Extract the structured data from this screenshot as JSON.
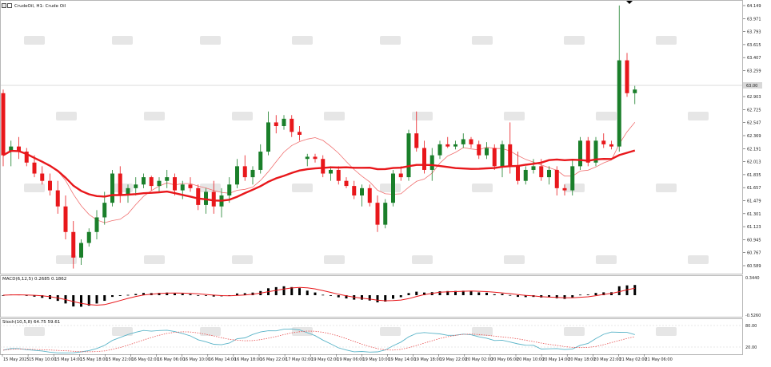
{
  "chart_title": "CrudeOil, H1:  Crude Oil",
  "main_axis": {
    "ticks": [
      "64.149",
      "63.971",
      "63.793",
      "63.615",
      "63.407",
      "63.259",
      "63.081",
      "62.903",
      "62.725",
      "62.547",
      "62.369",
      "62.191",
      "62.013",
      "61.835",
      "61.657",
      "61.479",
      "61.301",
      "61.123",
      "60.945",
      "60.767",
      "60.589"
    ]
  },
  "current_price_label": "63.00",
  "macd": {
    "label": "MACD(6,12,5) 0.2685 0.1862",
    "ticks": [
      "0.3440",
      "-0.5260"
    ]
  },
  "stoch": {
    "label": "Stoch(10,5,8) 64.75 59.61",
    "ticks": [
      "80.00",
      "20.00"
    ]
  },
  "time_labels": [
    "15 May 2025",
    "15 May 10:00",
    "15 May 14:00",
    "15 May 18:00",
    "15 May 22:00",
    "16 May 02:00",
    "16 May 06:00",
    "16 May 10:00",
    "16 May 14:00",
    "16 May 18:00",
    "16 May 22:00",
    "17 May 02:00",
    "19 May 02:00",
    "19 May 06:00",
    "19 May 10:00",
    "19 May 14:00",
    "19 May 18:00",
    "19 May 22:00",
    "20 May 02:00",
    "20 May 06:00",
    "20 May 10:00",
    "20 May 14:00",
    "20 May 18:00",
    "20 May 22:00",
    "21 May 02:00",
    "21 May 06:00"
  ],
  "colors": {
    "bull": "#1a7f2a",
    "bear": "#e8171b",
    "ma_thick": "#e8171b",
    "ma_thin": "#f07070",
    "macd_hist": "#000000",
    "macd_signal": "#e8171b",
    "stoch_main": "#5ab4c8",
    "stoch_signal": "#e85050"
  },
  "chart_data": {
    "type": "candlestick",
    "y_range": [
      60.5,
      64.2
    ],
    "candles": [
      [
        62.95,
        63.0,
        61.95,
        62.1
      ],
      [
        62.15,
        62.3,
        61.95,
        62.22
      ],
      [
        62.22,
        62.35,
        62.05,
        62.15
      ],
      [
        62.15,
        62.2,
        61.95,
        62.0
      ],
      [
        62.0,
        62.1,
        61.8,
        61.85
      ],
      [
        61.85,
        61.95,
        61.7,
        61.75
      ],
      [
        61.75,
        61.85,
        61.55,
        61.62
      ],
      [
        61.62,
        61.75,
        61.3,
        61.4
      ],
      [
        61.4,
        61.55,
        60.95,
        61.05
      ],
      [
        61.05,
        61.2,
        60.55,
        60.7
      ],
      [
        60.7,
        60.95,
        60.6,
        60.9
      ],
      [
        60.9,
        61.1,
        60.85,
        61.05
      ],
      [
        61.05,
        61.35,
        60.95,
        61.25
      ],
      [
        61.25,
        61.6,
        61.15,
        61.45
      ],
      [
        61.45,
        61.9,
        61.4,
        61.85
      ],
      [
        61.85,
        61.95,
        61.45,
        61.55
      ],
      [
        61.55,
        61.7,
        61.45,
        61.65
      ],
      [
        61.65,
        61.8,
        61.55,
        61.7
      ],
      [
        61.7,
        61.85,
        61.65,
        61.8
      ],
      [
        61.8,
        61.82,
        61.62,
        61.68
      ],
      [
        61.68,
        61.8,
        61.6,
        61.75
      ],
      [
        61.75,
        61.9,
        61.65,
        61.8
      ],
      [
        61.8,
        61.85,
        61.55,
        61.62
      ],
      [
        61.62,
        61.75,
        61.5,
        61.7
      ],
      [
        61.7,
        61.8,
        61.6,
        61.65
      ],
      [
        61.65,
        61.7,
        61.35,
        61.42
      ],
      [
        61.42,
        61.65,
        61.3,
        61.6
      ],
      [
        61.6,
        61.75,
        61.3,
        61.4
      ],
      [
        61.4,
        61.65,
        61.25,
        61.55
      ],
      [
        61.55,
        61.8,
        61.45,
        61.7
      ],
      [
        61.7,
        62.05,
        61.65,
        61.95
      ],
      [
        61.95,
        62.1,
        61.75,
        61.8
      ],
      [
        61.8,
        61.95,
        61.7,
        61.9
      ],
      [
        61.9,
        62.25,
        61.85,
        62.15
      ],
      [
        62.15,
        62.7,
        62.1,
        62.55
      ],
      [
        62.55,
        62.65,
        62.4,
        62.5
      ],
      [
        62.5,
        62.65,
        62.45,
        62.6
      ],
      [
        62.6,
        62.65,
        62.35,
        62.42
      ],
      [
        62.42,
        62.5,
        62.3,
        62.38
      ],
      [
        62.05,
        62.12,
        61.95,
        62.08
      ],
      [
        62.08,
        62.12,
        62.0,
        62.05
      ],
      [
        62.05,
        62.1,
        61.8,
        61.85
      ],
      [
        61.85,
        61.95,
        61.75,
        61.9
      ],
      [
        61.9,
        61.95,
        61.7,
        61.75
      ],
      [
        61.75,
        61.8,
        61.65,
        61.68
      ],
      [
        61.68,
        61.75,
        61.5,
        61.55
      ],
      [
        61.55,
        61.7,
        61.4,
        61.65
      ],
      [
        61.65,
        61.7,
        61.4,
        61.45
      ],
      [
        61.45,
        61.55,
        61.05,
        61.15
      ],
      [
        61.15,
        61.5,
        61.1,
        61.45
      ],
      [
        61.45,
        61.9,
        61.4,
        61.85
      ],
      [
        61.85,
        61.95,
        61.75,
        61.8
      ],
      [
        61.8,
        62.45,
        61.75,
        62.4
      ],
      [
        62.4,
        62.7,
        62.15,
        62.2
      ],
      [
        62.2,
        62.3,
        61.85,
        61.9
      ],
      [
        61.9,
        62.2,
        61.75,
        62.1
      ],
      [
        62.1,
        62.3,
        62.05,
        62.25
      ],
      [
        62.25,
        62.35,
        62.2,
        62.22
      ],
      [
        62.22,
        62.3,
        62.18,
        62.25
      ],
      [
        62.25,
        62.4,
        62.2,
        62.32
      ],
      [
        62.32,
        62.35,
        62.2,
        62.25
      ],
      [
        62.25,
        62.3,
        62.05,
        62.1
      ],
      [
        62.1,
        62.28,
        62.05,
        62.2
      ],
      [
        62.2,
        62.25,
        61.9,
        61.95
      ],
      [
        61.95,
        62.3,
        61.8,
        62.25
      ],
      [
        62.25,
        62.55,
        61.85,
        61.95
      ],
      [
        61.95,
        62.15,
        61.7,
        61.75
      ],
      [
        61.75,
        61.95,
        61.7,
        61.9
      ],
      [
        61.9,
        62.05,
        61.85,
        61.95
      ],
      [
        61.95,
        62.05,
        61.75,
        61.8
      ],
      [
        61.8,
        61.95,
        61.7,
        61.9
      ],
      [
        61.9,
        61.95,
        61.55,
        61.65
      ],
      [
        61.65,
        61.7,
        61.55,
        61.62
      ],
      [
        61.62,
        62.05,
        61.55,
        61.95
      ],
      [
        61.95,
        62.35,
        61.9,
        62.3
      ],
      [
        62.3,
        62.35,
        61.95,
        62.0
      ],
      [
        62.0,
        62.35,
        61.95,
        62.3
      ],
      [
        62.3,
        62.4,
        62.2,
        62.25
      ],
      [
        62.25,
        62.3,
        62.18,
        62.22
      ],
      [
        62.22,
        64.15,
        62.15,
        63.4
      ],
      [
        63.4,
        63.5,
        62.9,
        62.95
      ],
      [
        62.95,
        63.05,
        62.8,
        63.0
      ]
    ]
  }
}
